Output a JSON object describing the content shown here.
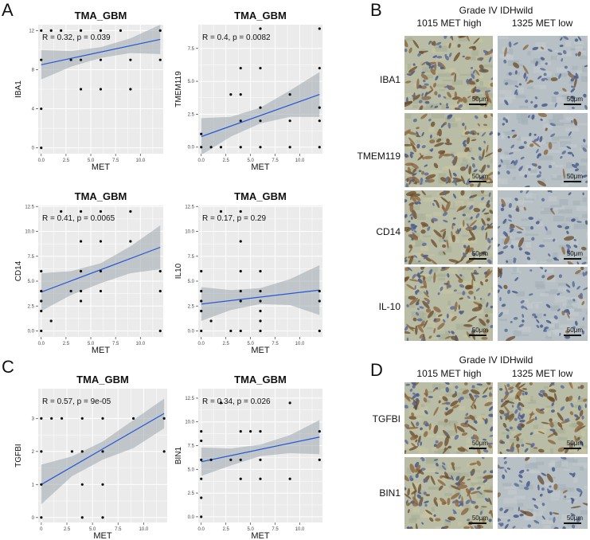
{
  "panel_labels": [
    "A",
    "B",
    "C",
    "D"
  ],
  "colors": {
    "panel_bg": "#ebebeb",
    "grid": "#ffffff",
    "line": "#2457d6",
    "ribbon": "#9aa6ad",
    "point": "#111111"
  },
  "chart_data": [
    {
      "type": "scatter",
      "title": "TMA_GBM",
      "xlabel": "MET",
      "ylabel": "IBA1",
      "stat": "R = 0.32, p = 0.039",
      "xlim": [
        -0.3,
        12.3
      ],
      "ylim": [
        -0.6,
        12.6
      ],
      "xticks": [
        0,
        2.5,
        5,
        7.5,
        10,
        12.5
      ],
      "xticklabels": [
        "0.0",
        "2.5",
        "5.0",
        "7.5",
        "10.0",
        "12.5"
      ],
      "yticks": [
        0,
        4,
        8,
        12
      ],
      "yticklabels": [
        "0",
        "4",
        "8",
        "12"
      ],
      "points": [
        [
          0,
          12
        ],
        [
          0,
          9
        ],
        [
          0,
          4
        ],
        [
          0,
          0
        ],
        [
          1,
          12
        ],
        [
          2,
          12
        ],
        [
          3,
          9
        ],
        [
          4,
          12
        ],
        [
          4,
          9
        ],
        [
          4,
          6
        ],
        [
          6,
          12
        ],
        [
          6,
          9
        ],
        [
          6,
          6
        ],
        [
          8,
          12
        ],
        [
          9,
          9
        ],
        [
          9,
          6
        ],
        [
          12,
          12
        ],
        [
          12,
          9
        ]
      ],
      "fit": [
        [
          0,
          8.5
        ],
        [
          12,
          11.1
        ]
      ],
      "band_upper": [
        [
          0,
          10.0
        ],
        [
          3,
          9.9
        ],
        [
          6,
          10.3
        ],
        [
          9,
          11.2
        ],
        [
          12,
          12.6
        ]
      ],
      "band_lower": [
        [
          0,
          7.0
        ],
        [
          3,
          8.3
        ],
        [
          6,
          9.2
        ],
        [
          9,
          9.7
        ],
        [
          12,
          9.6
        ]
      ]
    },
    {
      "type": "scatter",
      "title": "TMA_GBM",
      "xlabel": "MET",
      "ylabel": "TMEM119",
      "stat": "R = 0.4, p = 0.0082",
      "xlim": [
        -0.3,
        12.3
      ],
      "ylim": [
        -0.5,
        9.3
      ],
      "xticks": [
        0,
        2.5,
        5,
        7.5,
        10,
        12.5
      ],
      "xticklabels": [
        "0.0",
        "2.5",
        "5.0",
        "7.5",
        "10.0",
        "12.5"
      ],
      "yticks": [
        0,
        2.5,
        5,
        7.5
      ],
      "yticklabels": [
        "0.0",
        "2.5",
        "5.0",
        "7.5"
      ],
      "points": [
        [
          0,
          0
        ],
        [
          0,
          1
        ],
        [
          1,
          0
        ],
        [
          2,
          0
        ],
        [
          3,
          4
        ],
        [
          4,
          2
        ],
        [
          4,
          4
        ],
        [
          4,
          6
        ],
        [
          4,
          0
        ],
        [
          6,
          9
        ],
        [
          6,
          6
        ],
        [
          6,
          3
        ],
        [
          6,
          0
        ],
        [
          6,
          2
        ],
        [
          9,
          4
        ],
        [
          9,
          2
        ],
        [
          9,
          0
        ],
        [
          12,
          9
        ],
        [
          12,
          6
        ],
        [
          12,
          3
        ],
        [
          12,
          2
        ],
        [
          12,
          0
        ]
      ],
      "fit": [
        [
          0,
          0.8
        ],
        [
          12,
          4.0
        ]
      ],
      "band_upper": [
        [
          0,
          2.2
        ],
        [
          3,
          2.3
        ],
        [
          6,
          3.0
        ],
        [
          9,
          4.3
        ],
        [
          12,
          5.7
        ]
      ],
      "band_lower": [
        [
          0,
          -0.6
        ],
        [
          3,
          0.8
        ],
        [
          6,
          1.8
        ],
        [
          9,
          2.3
        ],
        [
          12,
          2.3
        ]
      ]
    },
    {
      "type": "scatter",
      "title": "TMA_GBM",
      "xlabel": "MET",
      "ylabel": "CD14",
      "stat": "R = 0.41, p = 0.0065",
      "xlim": [
        -0.3,
        12.3
      ],
      "ylim": [
        -0.6,
        12.6
      ],
      "xticks": [
        0,
        2.5,
        5,
        7.5,
        10,
        12.5
      ],
      "xticklabels": [
        "0.0",
        "2.5",
        "5.0",
        "7.5",
        "10.0",
        "12.5"
      ],
      "yticks": [
        0,
        2.5,
        5,
        7.5,
        10,
        12.5
      ],
      "yticklabels": [
        "0.0",
        "2.5",
        "5.0",
        "7.5",
        "10.0",
        "12.5"
      ],
      "points": [
        [
          0,
          6
        ],
        [
          0,
          4
        ],
        [
          0,
          3
        ],
        [
          0,
          2
        ],
        [
          0,
          0
        ],
        [
          1,
          1
        ],
        [
          2,
          12
        ],
        [
          3,
          4
        ],
        [
          4,
          12
        ],
        [
          4,
          9
        ],
        [
          4,
          6
        ],
        [
          4,
          4
        ],
        [
          4,
          3
        ],
        [
          6,
          12
        ],
        [
          6,
          9
        ],
        [
          6,
          6
        ],
        [
          6,
          4
        ],
        [
          9,
          9
        ],
        [
          9,
          12
        ],
        [
          12,
          6
        ],
        [
          12,
          4
        ],
        [
          12,
          0
        ]
      ],
      "fit": [
        [
          0,
          3.9
        ],
        [
          12,
          8.4
        ]
      ],
      "band_upper": [
        [
          0,
          5.8
        ],
        [
          3,
          6.0
        ],
        [
          6,
          6.8
        ],
        [
          9,
          8.5
        ],
        [
          12,
          10.6
        ]
      ],
      "band_lower": [
        [
          0,
          2.0
        ],
        [
          3,
          3.6
        ],
        [
          6,
          4.8
        ],
        [
          9,
          5.8
        ],
        [
          12,
          6.2
        ]
      ]
    },
    {
      "type": "scatter",
      "title": "TMA_GBM",
      "xlabel": "MET",
      "ylabel": "IL10",
      "stat": "R = 0.17, p = 0.29",
      "xlim": [
        -0.3,
        12.3
      ],
      "ylim": [
        -0.6,
        12.6
      ],
      "xticks": [
        0,
        2.5,
        5,
        7.5,
        10,
        12.5
      ],
      "xticklabels": [
        "0.0",
        "2.5",
        "5.0",
        "7.5",
        "10.0",
        "12.5"
      ],
      "yticks": [
        0,
        2.5,
        5,
        7.5,
        10,
        12.5
      ],
      "yticklabels": [
        "0.0",
        "2.5",
        "5.0",
        "7.5",
        "10.0",
        "12.5"
      ],
      "points": [
        [
          0,
          6
        ],
        [
          0,
          4
        ],
        [
          0,
          3
        ],
        [
          0,
          2
        ],
        [
          0,
          0
        ],
        [
          1,
          1
        ],
        [
          2,
          12
        ],
        [
          3,
          0
        ],
        [
          4,
          12
        ],
        [
          4,
          9
        ],
        [
          4,
          6
        ],
        [
          4,
          4
        ],
        [
          4,
          3
        ],
        [
          4,
          0
        ],
        [
          6,
          6
        ],
        [
          6,
          4
        ],
        [
          6,
          3
        ],
        [
          6,
          2
        ],
        [
          6,
          1
        ],
        [
          6,
          0
        ],
        [
          12,
          4
        ],
        [
          12,
          3
        ],
        [
          12,
          0
        ]
      ],
      "fit": [
        [
          0,
          2.7
        ],
        [
          12,
          4.1
        ]
      ],
      "band_upper": [
        [
          0,
          4.4
        ],
        [
          3,
          4.1
        ],
        [
          6,
          4.3
        ],
        [
          9,
          5.2
        ],
        [
          12,
          6.6
        ]
      ],
      "band_lower": [
        [
          0,
          1.0
        ],
        [
          3,
          2.1
        ],
        [
          6,
          2.7
        ],
        [
          9,
          2.6
        ],
        [
          12,
          1.6
        ]
      ]
    },
    {
      "type": "scatter",
      "title": "TMA_GBM",
      "xlabel": "MET",
      "ylabel": "TGFBI",
      "stat": "R = 0.57, p = 9e-05",
      "xlim": [
        -0.3,
        12.3
      ],
      "ylim": [
        -0.15,
        3.9
      ],
      "xticks": [
        0,
        2.5,
        5,
        7.5,
        10,
        12.5
      ],
      "xticklabels": [
        "0",
        "2.5",
        "5.0",
        "7.5",
        "10.0",
        "12.5"
      ],
      "yticks": [
        0,
        1,
        2,
        3
      ],
      "yticklabels": [
        "0",
        "1",
        "2",
        "3"
      ],
      "points": [
        [
          0,
          3
        ],
        [
          0,
          2
        ],
        [
          0,
          1
        ],
        [
          0,
          0
        ],
        [
          1,
          3
        ],
        [
          2,
          3
        ],
        [
          3,
          2
        ],
        [
          4,
          3
        ],
        [
          4,
          2
        ],
        [
          4,
          1
        ],
        [
          4,
          0
        ],
        [
          6,
          3
        ],
        [
          6,
          2
        ],
        [
          6,
          1
        ],
        [
          6,
          0
        ],
        [
          9,
          3
        ],
        [
          12,
          3
        ],
        [
          12,
          2
        ]
      ],
      "fit": [
        [
          0,
          1.0
        ],
        [
          12,
          3.15
        ]
      ],
      "band_upper": [
        [
          0,
          1.6
        ],
        [
          3,
          1.85
        ],
        [
          6,
          2.3
        ],
        [
          9,
          2.95
        ],
        [
          12,
          3.6
        ]
      ],
      "band_lower": [
        [
          0,
          0.4
        ],
        [
          3,
          1.25
        ],
        [
          6,
          1.75
        ],
        [
          9,
          2.1
        ],
        [
          12,
          2.7
        ]
      ]
    },
    {
      "type": "scatter",
      "title": "TMA_GBM",
      "xlabel": "MET",
      "ylabel": "BIN1",
      "stat": "R = 0.34, p = 0.026",
      "xlim": [
        -0.3,
        12.3
      ],
      "ylim": [
        -0.6,
        13.5
      ],
      "xticks": [
        0,
        2.5,
        5,
        7.5,
        10,
        12.5
      ],
      "xticklabels": [
        "0.0",
        "2.5",
        "5.0",
        "7.5",
        "10.0",
        "12.5"
      ],
      "yticks": [
        0,
        2.5,
        5,
        7.5,
        10,
        12.5
      ],
      "yticklabels": [
        "0.0",
        "2.5",
        "5.0",
        "7.5",
        "10.0",
        "12.5"
      ],
      "points": [
        [
          0,
          9
        ],
        [
          0,
          8
        ],
        [
          0,
          6
        ],
        [
          0,
          4
        ],
        [
          0,
          2
        ],
        [
          0,
          0
        ],
        [
          1,
          6
        ],
        [
          2,
          12
        ],
        [
          3,
          6
        ],
        [
          4,
          9
        ],
        [
          4,
          6
        ],
        [
          4,
          4
        ],
        [
          5,
          9
        ],
        [
          6,
          9
        ],
        [
          6,
          6
        ],
        [
          6,
          4
        ],
        [
          9,
          12
        ],
        [
          9,
          4
        ],
        [
          12,
          9
        ],
        [
          12,
          6
        ]
      ],
      "fit": [
        [
          0,
          5.8
        ],
        [
          12,
          8.4
        ]
      ],
      "band_upper": [
        [
          0,
          7.3
        ],
        [
          3,
          7.2
        ],
        [
          6,
          7.6
        ],
        [
          9,
          8.6
        ],
        [
          12,
          10.2
        ]
      ],
      "band_lower": [
        [
          0,
          4.3
        ],
        [
          3,
          5.4
        ],
        [
          6,
          6.4
        ],
        [
          9,
          6.7
        ],
        [
          12,
          6.6
        ]
      ]
    }
  ],
  "ihc_b": {
    "grade": "Grade IV IDHwild",
    "col_high": "1015 MET high",
    "col_low": "1325 MET low",
    "rows": [
      "IBA1",
      "TMEM119",
      "CD14",
      "IL-10"
    ],
    "scale": "50μm"
  },
  "ihc_d": {
    "grade": "Grade IV IDHwild",
    "col_high": "1015 MET high",
    "col_low": "1325 MET low",
    "rows": [
      "TGFBI",
      "BIN1"
    ],
    "scale": "50μm"
  }
}
